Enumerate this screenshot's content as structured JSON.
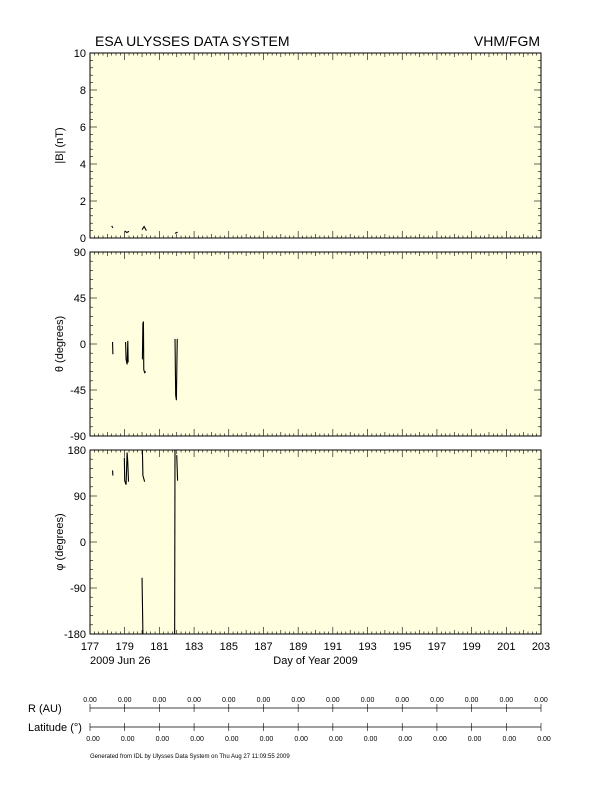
{
  "header": {
    "title_left": "ESA ULYSSES DATA SYSTEM",
    "title_right": "VHM/FGM"
  },
  "footer": {
    "generated": "Generated from IDL by Ulysses Data System on Thu Aug 27 11:09:55 2009"
  },
  "colors": {
    "panel_background": "#ffffe0",
    "trace": "#000000"
  },
  "chart_data": [
    {
      "type": "line",
      "ylabel": "|B| (nT)",
      "xlim": [
        177,
        203
      ],
      "ylim": [
        0,
        10
      ],
      "yticks": [
        0,
        2,
        4,
        6,
        8,
        10
      ],
      "segments": [
        [
          [
            178.25,
            0.65
          ],
          [
            178.32,
            0.55
          ]
        ],
        [
          [
            179.0,
            0.38
          ],
          [
            179.12,
            0.3
          ],
          [
            179.25,
            0.36
          ]
        ],
        [
          [
            180.0,
            0.45
          ],
          [
            180.12,
            0.62
          ],
          [
            180.25,
            0.4
          ]
        ],
        [
          [
            181.9,
            0.25
          ],
          [
            182.05,
            0.32
          ]
        ]
      ]
    },
    {
      "type": "line",
      "ylabel": "θ (degrees)",
      "xlim": [
        177,
        203
      ],
      "ylim": [
        -90,
        90
      ],
      "yticks": [
        -90,
        -45,
        0,
        45,
        90
      ],
      "segments": [
        [
          [
            178.3,
            2
          ],
          [
            178.32,
            -10
          ]
        ],
        [
          [
            179.05,
            2
          ],
          [
            179.08,
            -15
          ],
          [
            179.14,
            -20
          ],
          [
            179.18,
            3
          ],
          [
            179.2,
            -18
          ]
        ],
        [
          [
            180.02,
            -15
          ],
          [
            180.05,
            20
          ],
          [
            180.08,
            22
          ],
          [
            180.1,
            -25
          ],
          [
            180.15,
            -28
          ],
          [
            180.22,
            -27
          ]
        ],
        [
          [
            181.9,
            5
          ],
          [
            181.94,
            -50
          ],
          [
            181.98,
            -55
          ],
          [
            182.03,
            5
          ]
        ]
      ]
    },
    {
      "type": "line",
      "ylabel": "φ (degrees)",
      "xlim": [
        177,
        203
      ],
      "ylim": [
        -180,
        180
      ],
      "yticks": [
        -180,
        -90,
        0,
        90,
        180
      ],
      "segments": [
        [
          [
            178.3,
            140
          ],
          [
            178.32,
            130
          ]
        ],
        [
          [
            178.98,
            165
          ],
          [
            179.0,
            120
          ],
          [
            179.08,
            112
          ],
          [
            179.14,
            175
          ],
          [
            179.18,
            155
          ],
          [
            179.22,
            118
          ]
        ],
        [
          [
            180.0,
            -70
          ],
          [
            180.05,
            -180
          ]
        ],
        [
          [
            180.02,
            180
          ],
          [
            180.05,
            130
          ],
          [
            180.15,
            118
          ]
        ],
        [
          [
            181.88,
            -180
          ],
          [
            181.9,
            180
          ]
        ],
        [
          [
            182.0,
            170
          ],
          [
            182.05,
            120
          ]
        ]
      ]
    }
  ],
  "x_axis": {
    "label": "Day of Year 2009",
    "start_date": "2009 Jun 26",
    "ticks": [
      "177",
      "179",
      "181",
      "183",
      "185",
      "187",
      "189",
      "191",
      "193",
      "195",
      "197",
      "199",
      "201",
      "203"
    ]
  },
  "ephemeris": {
    "r_label": "R (AU)",
    "lat_label": "Latitude (°)",
    "r_values": [
      "0.00",
      "0.00",
      "0.00",
      "0.00",
      "0.00",
      "0.00",
      "0.00",
      "0.00",
      "0.00",
      "0.00",
      "0.00",
      "0.00",
      "0.00",
      "0.00"
    ],
    "lat_values": [
      "0.00",
      "0.00",
      "0.00",
      "0.00",
      "0.00",
      "0.00",
      "0.00",
      "0.00",
      "0.00",
      "0.00",
      "0.00",
      "0.00",
      "0.00",
      "0.00"
    ]
  }
}
